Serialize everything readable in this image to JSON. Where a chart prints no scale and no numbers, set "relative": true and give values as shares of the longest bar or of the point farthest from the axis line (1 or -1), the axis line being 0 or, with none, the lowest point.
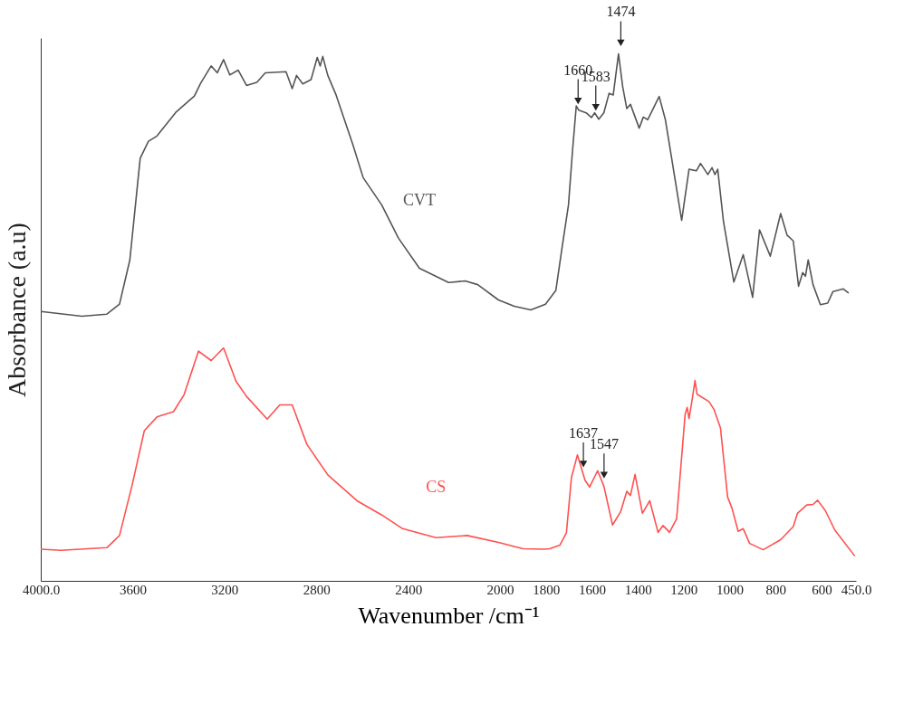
{
  "chart_data": {
    "type": "line",
    "relative": true,
    "xlabel": "Wavenumber /cm⁻¹",
    "ylabel": "Absorbance (a.u)",
    "xlim": [
      4000,
      450
    ],
    "xticks": [
      {
        "value": 4000,
        "label": "4000.0"
      },
      3600,
      3200,
      2800,
      2400,
      2000,
      1800,
      1600,
      1400,
      1200,
      1000,
      800,
      600,
      {
        "value": 450,
        "label": "450.0"
      }
    ],
    "grid": false,
    "legend": false,
    "marker": "none",
    "line_style": "solid",
    "series": [
      {
        "name": "CVT",
        "color": "#555555",
        "x": [
          4000,
          3821,
          3712,
          3657,
          3612,
          3567,
          3531,
          3494,
          3412,
          3331,
          3304,
          3258,
          3231,
          3204,
          3177,
          3140,
          3104,
          3059,
          3022,
          2932,
          2905,
          2886,
          2859,
          2823,
          2796,
          2783,
          2772,
          2750,
          2714,
          2641,
          2596,
          2515,
          2442,
          2351,
          2224,
          2152,
          2097,
          2007,
          1938,
          1866,
          1802,
          1757,
          1729,
          1702,
          1684,
          1668,
          1657,
          1625,
          1602,
          1588,
          1570,
          1548,
          1525,
          1507,
          1484,
          1466,
          1448,
          1432,
          1394,
          1376,
          1357,
          1307,
          1280,
          1249,
          1209,
          1177,
          1145,
          1127,
          1095,
          1077,
          1064,
          1052,
          1027,
          982,
          941,
          900,
          870,
          823,
          778,
          750,
          723,
          700,
          682,
          670,
          658,
          637,
          605,
          573,
          550,
          505,
          482
        ],
        "values": [
          0.511,
          0.502,
          0.506,
          0.525,
          0.609,
          0.802,
          0.834,
          0.844,
          0.889,
          0.92,
          0.944,
          0.977,
          0.964,
          0.989,
          0.96,
          0.969,
          0.94,
          0.946,
          0.964,
          0.966,
          0.934,
          0.959,
          0.943,
          0.951,
          0.993,
          0.977,
          0.995,
          0.959,
          0.922,
          0.828,
          0.765,
          0.713,
          0.65,
          0.593,
          0.566,
          0.569,
          0.562,
          0.533,
          0.521,
          0.514,
          0.525,
          0.551,
          0.635,
          0.713,
          0.818,
          0.901,
          0.893,
          0.888,
          0.879,
          0.888,
          0.876,
          0.888,
          0.925,
          0.922,
          1.0,
          0.938,
          0.896,
          0.904,
          0.859,
          0.88,
          0.875,
          0.919,
          0.875,
          0.792,
          0.684,
          0.781,
          0.778,
          0.792,
          0.771,
          0.784,
          0.771,
          0.781,
          0.682,
          0.567,
          0.619,
          0.538,
          0.666,
          0.616,
          0.697,
          0.656,
          0.645,
          0.559,
          0.585,
          0.578,
          0.609,
          0.562,
          0.524,
          0.527,
          0.549,
          0.554,
          0.546
        ]
      },
      {
        "name": "CS",
        "color": "#ff5050",
        "x": [
          4000,
          3912,
          3712,
          3657,
          3603,
          3549,
          3494,
          3422,
          3376,
          3313,
          3258,
          3204,
          3150,
          3104,
          3014,
          2959,
          2905,
          2841,
          2750,
          2623,
          2515,
          2424,
          2279,
          2143,
          2007,
          1900,
          1810,
          1784,
          1739,
          1711,
          1689,
          1663,
          1630,
          1610,
          1575,
          1548,
          1510,
          1475,
          1448,
          1432,
          1412,
          1380,
          1348,
          1312,
          1290,
          1262,
          1231,
          1194,
          1185,
          1177,
          1163,
          1151,
          1142,
          1090,
          1068,
          1040,
          1009,
          990,
          963,
          941,
          913,
          854,
          778,
          723,
          705,
          664,
          637,
          617,
          583,
          543,
          455
        ],
        "values": [
          0.06,
          0.058,
          0.063,
          0.086,
          0.18,
          0.285,
          0.311,
          0.321,
          0.353,
          0.436,
          0.418,
          0.442,
          0.379,
          0.35,
          0.307,
          0.334,
          0.334,
          0.259,
          0.201,
          0.152,
          0.125,
          0.099,
          0.082,
          0.086,
          0.073,
          0.061,
          0.06,
          0.061,
          0.068,
          0.091,
          0.196,
          0.239,
          0.191,
          0.178,
          0.209,
          0.18,
          0.106,
          0.131,
          0.17,
          0.162,
          0.202,
          0.128,
          0.152,
          0.092,
          0.105,
          0.092,
          0.118,
          0.316,
          0.329,
          0.308,
          0.345,
          0.38,
          0.354,
          0.34,
          0.325,
          0.29,
          0.159,
          0.138,
          0.094,
          0.099,
          0.071,
          0.059,
          0.078,
          0.103,
          0.128,
          0.144,
          0.145,
          0.153,
          0.133,
          0.097,
          0.047
        ]
      }
    ],
    "annotations": [
      {
        "text": "1660",
        "x": 1660,
        "y": 0.89
      },
      {
        "text": "1583",
        "x": 1583,
        "y": 0.878
      },
      {
        "text": "1474",
        "x": 1474,
        "y": 1.0
      },
      {
        "text": "1637",
        "x": 1637,
        "y": 0.201
      },
      {
        "text": "1547",
        "x": 1547,
        "y": 0.18
      }
    ]
  }
}
